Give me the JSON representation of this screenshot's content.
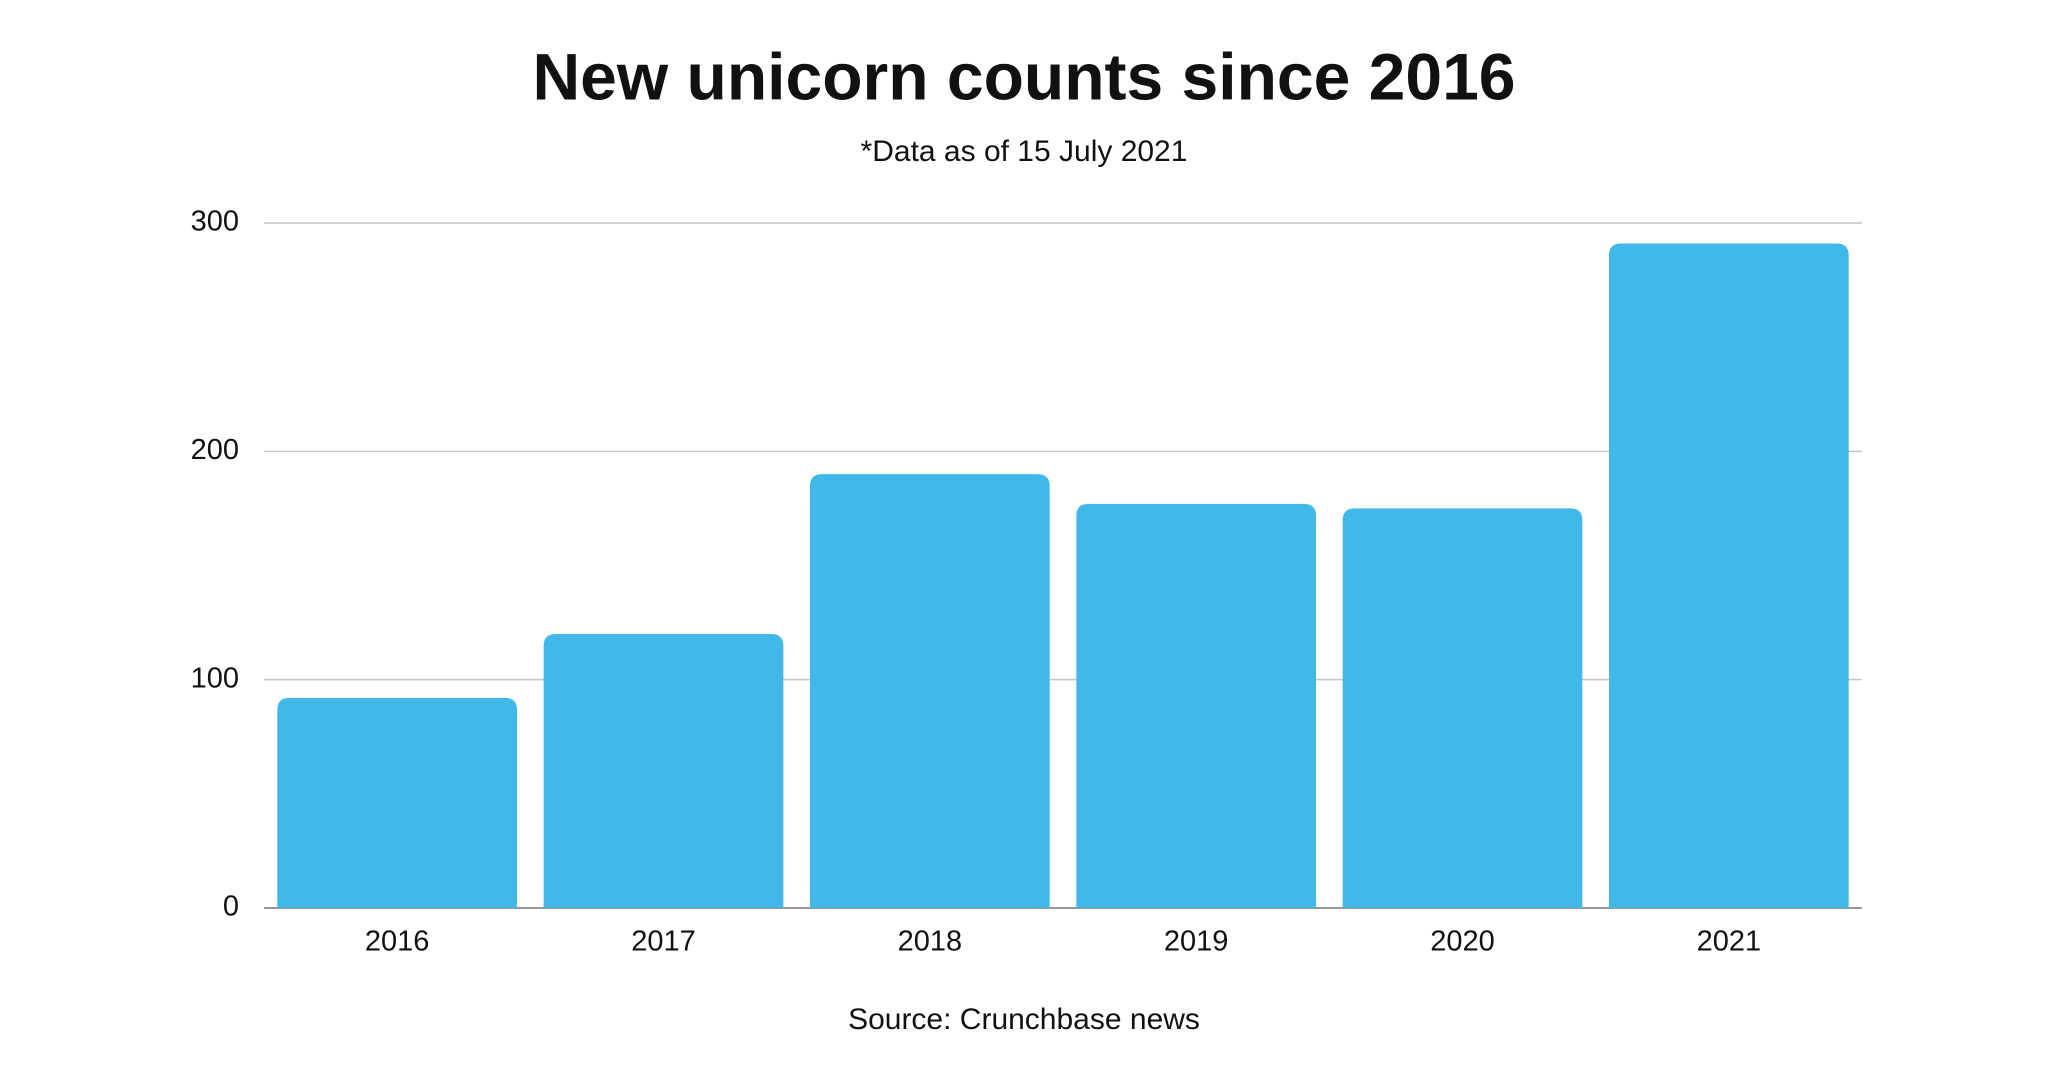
{
  "chart_data": {
    "type": "bar",
    "title": "New unicorn counts since 2016",
    "subtitle": "*Data as of 15 July 2021",
    "source": "Source: Crunchbase news",
    "categories": [
      "2016",
      "2017",
      "2018",
      "2019",
      "2020",
      "2021"
    ],
    "values": [
      92,
      120,
      190,
      177,
      175,
      291
    ],
    "color": "#41b8e8",
    "ylim": [
      0,
      300
    ],
    "yticks": [
      0,
      100,
      200,
      300
    ],
    "grid": true
  }
}
